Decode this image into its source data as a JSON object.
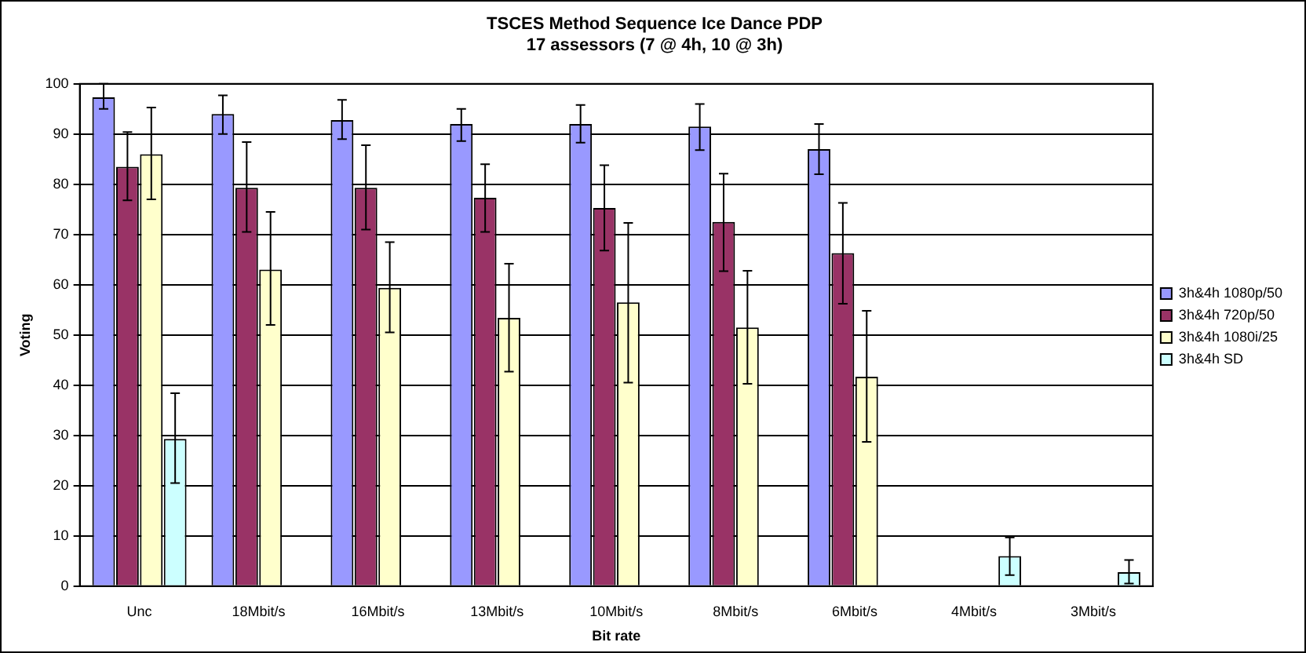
{
  "chart_data": {
    "type": "bar",
    "title": "TSCES Method Sequence Ice Dance PDP",
    "subtitle": "17 assessors (7 @ 4h, 10 @ 3h)",
    "xlabel": "Bit rate",
    "ylabel": "Voting",
    "categories": [
      "Unc",
      "18Mbit/s",
      "16Mbit/s",
      "13Mbit/s",
      "10Mbit/s",
      "8Mbit/s",
      "6Mbit/s",
      "4Mbit/s",
      "3Mbit/s"
    ],
    "series": [
      {
        "name": "3h&4h 1080p/50",
        "color": "#9999ff",
        "values": [
          97.3,
          94,
          92.8,
          92,
          92,
          91.5,
          87,
          null,
          null
        ],
        "errors": [
          [
            95,
            100
          ],
          [
            90,
            97.7
          ],
          [
            89,
            96.8
          ],
          [
            88.6,
            95
          ],
          [
            88.3,
            95.8
          ],
          [
            86.8,
            96
          ],
          [
            82,
            92
          ],
          null,
          null
        ]
      },
      {
        "name": "3h&4h 720p/50",
        "color": "#993366",
        "values": [
          83.5,
          79.3,
          79.3,
          77.3,
          75.3,
          72.5,
          66.3,
          null,
          null
        ],
        "errors": [
          [
            76.8,
            90.4
          ],
          [
            70.5,
            88.4
          ],
          [
            71,
            87.8
          ],
          [
            70.5,
            84
          ],
          [
            66.8,
            83.8
          ],
          [
            62.7,
            82.1
          ],
          [
            56.2,
            76.3
          ],
          null,
          null
        ]
      },
      {
        "name": "3h&4h 1080i/25",
        "color": "#ffffcc",
        "values": [
          86,
          63,
          59.4,
          53.4,
          56.5,
          51.5,
          41.7,
          null,
          null
        ],
        "errors": [
          [
            77,
            95.3
          ],
          [
            52,
            74.5
          ],
          [
            50.5,
            68.5
          ],
          [
            42.7,
            64.2
          ],
          [
            40.5,
            72.3
          ],
          [
            40.3,
            62.8
          ],
          [
            28.7,
            54.8
          ],
          null,
          null
        ]
      },
      {
        "name": "3h&4h SD",
        "color": "#ccffff",
        "values": [
          29.3,
          null,
          null,
          null,
          null,
          null,
          null,
          6,
          2.8
        ],
        "errors": [
          [
            20.5,
            38.4
          ],
          null,
          null,
          null,
          null,
          null,
          null,
          [
            2.2,
            9.7
          ],
          [
            0.5,
            5.2
          ]
        ]
      }
    ],
    "ylim": [
      0,
      100
    ],
    "yticks": [
      0,
      10,
      20,
      30,
      40,
      50,
      60,
      70,
      80,
      90,
      100
    ],
    "grid": "y",
    "legend": "right"
  }
}
